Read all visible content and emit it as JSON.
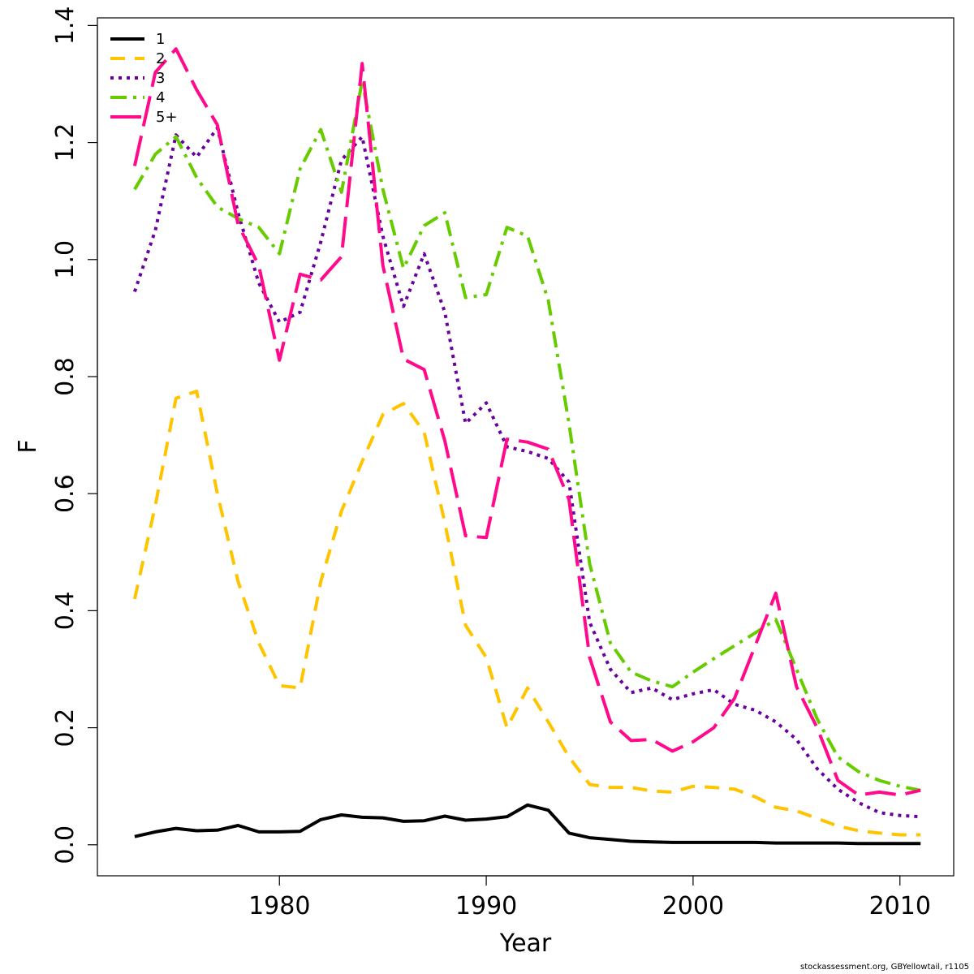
{
  "chart_data": {
    "type": "line",
    "xlabel": "Year",
    "ylabel": "F",
    "xlim": [
      1971.2,
      2012.6
    ],
    "ylim": [
      -0.053,
      1.413
    ],
    "x_ticks": [
      1980,
      1990,
      2000,
      2010
    ],
    "y_ticks": [
      0.0,
      0.2,
      0.4,
      0.6,
      0.8,
      1.0,
      1.2,
      1.4
    ],
    "y_tick_labels": [
      "0.0",
      "0.2",
      "0.4",
      "0.6",
      "0.8",
      "1.0",
      "1.2",
      "1.4"
    ],
    "x_tick_labels": [
      "1980",
      "1990",
      "2000",
      "2010"
    ],
    "legend_position": "top-left",
    "x": [
      1973,
      1974,
      1975,
      1976,
      1977,
      1978,
      1979,
      1980,
      1981,
      1982,
      1983,
      1984,
      1985,
      1986,
      1987,
      1988,
      1989,
      1990,
      1991,
      1992,
      1993,
      1994,
      1995,
      1996,
      1997,
      1998,
      1999,
      2000,
      2001,
      2002,
      2003,
      2004,
      2005,
      2006,
      2007,
      2008,
      2009,
      2010,
      2011
    ],
    "series": [
      {
        "name": "1",
        "color": "#000000",
        "dash": "",
        "width": 4,
        "values": [
          0.014,
          0.022,
          0.028,
          0.024,
          0.025,
          0.033,
          0.022,
          0.022,
          0.023,
          0.043,
          0.051,
          0.047,
          0.046,
          0.04,
          0.041,
          0.049,
          0.042,
          0.044,
          0.048,
          0.068,
          0.059,
          0.02,
          0.012,
          0.009,
          0.006,
          0.005,
          0.004,
          0.004,
          0.004,
          0.004,
          0.004,
          0.003,
          0.003,
          0.003,
          0.003,
          0.002,
          0.002,
          0.002,
          0.002
        ]
      },
      {
        "name": "2",
        "color": "#FFC400",
        "dash": "18,12",
        "width": 4,
        "values": [
          0.42,
          0.58,
          0.763,
          0.775,
          0.6,
          0.45,
          0.345,
          0.272,
          0.268,
          0.45,
          0.57,
          0.655,
          0.735,
          0.754,
          0.705,
          0.55,
          0.375,
          0.32,
          0.2,
          0.268,
          0.21,
          0.15,
          0.103,
          0.098,
          0.098,
          0.092,
          0.09,
          0.1,
          0.098,
          0.095,
          0.082,
          0.064,
          0.058,
          0.045,
          0.032,
          0.024,
          0.02,
          0.017,
          0.017
        ]
      },
      {
        "name": "3",
        "color": "#6A009D",
        "dash": "4,6",
        "width": 4,
        "values": [
          0.945,
          1.05,
          1.213,
          1.175,
          1.225,
          1.08,
          0.96,
          0.893,
          0.91,
          1.03,
          1.17,
          1.21,
          1.04,
          0.92,
          1.01,
          0.91,
          0.72,
          0.755,
          0.68,
          0.672,
          0.66,
          0.62,
          0.38,
          0.3,
          0.26,
          0.268,
          0.248,
          0.258,
          0.265,
          0.24,
          0.23,
          0.21,
          0.18,
          0.13,
          0.095,
          0.072,
          0.055,
          0.05,
          0.048
        ]
      },
      {
        "name": "4",
        "color": "#66CC00",
        "dash": "20,8,4,8",
        "width": 4,
        "values": [
          1.12,
          1.18,
          1.21,
          1.14,
          1.09,
          1.07,
          1.055,
          1.01,
          1.155,
          1.222,
          1.115,
          1.305,
          1.12,
          0.985,
          1.058,
          1.08,
          0.935,
          0.94,
          1.055,
          1.04,
          0.93,
          0.72,
          0.48,
          0.345,
          0.295,
          0.28,
          0.27,
          0.295,
          0.318,
          0.34,
          0.362,
          0.385,
          0.3,
          0.215,
          0.15,
          0.125,
          0.11,
          0.1,
          0.093
        ]
      },
      {
        "name": "5+",
        "color": "#FF0A8C",
        "dash": "38,12",
        "width": 4,
        "values": [
          1.16,
          1.32,
          1.36,
          1.29,
          1.23,
          1.06,
          0.99,
          0.828,
          0.975,
          0.965,
          1.005,
          1.335,
          0.99,
          0.83,
          0.812,
          0.69,
          0.528,
          0.525,
          0.693,
          0.688,
          0.676,
          0.59,
          0.32,
          0.21,
          0.178,
          0.18,
          0.16,
          0.176,
          0.2,
          0.25,
          0.34,
          0.43,
          0.27,
          0.2,
          0.11,
          0.085,
          0.09,
          0.085,
          0.093
        ]
      }
    ]
  },
  "footer_text": "stockassessment.org, GBYellowtail, r1105"
}
